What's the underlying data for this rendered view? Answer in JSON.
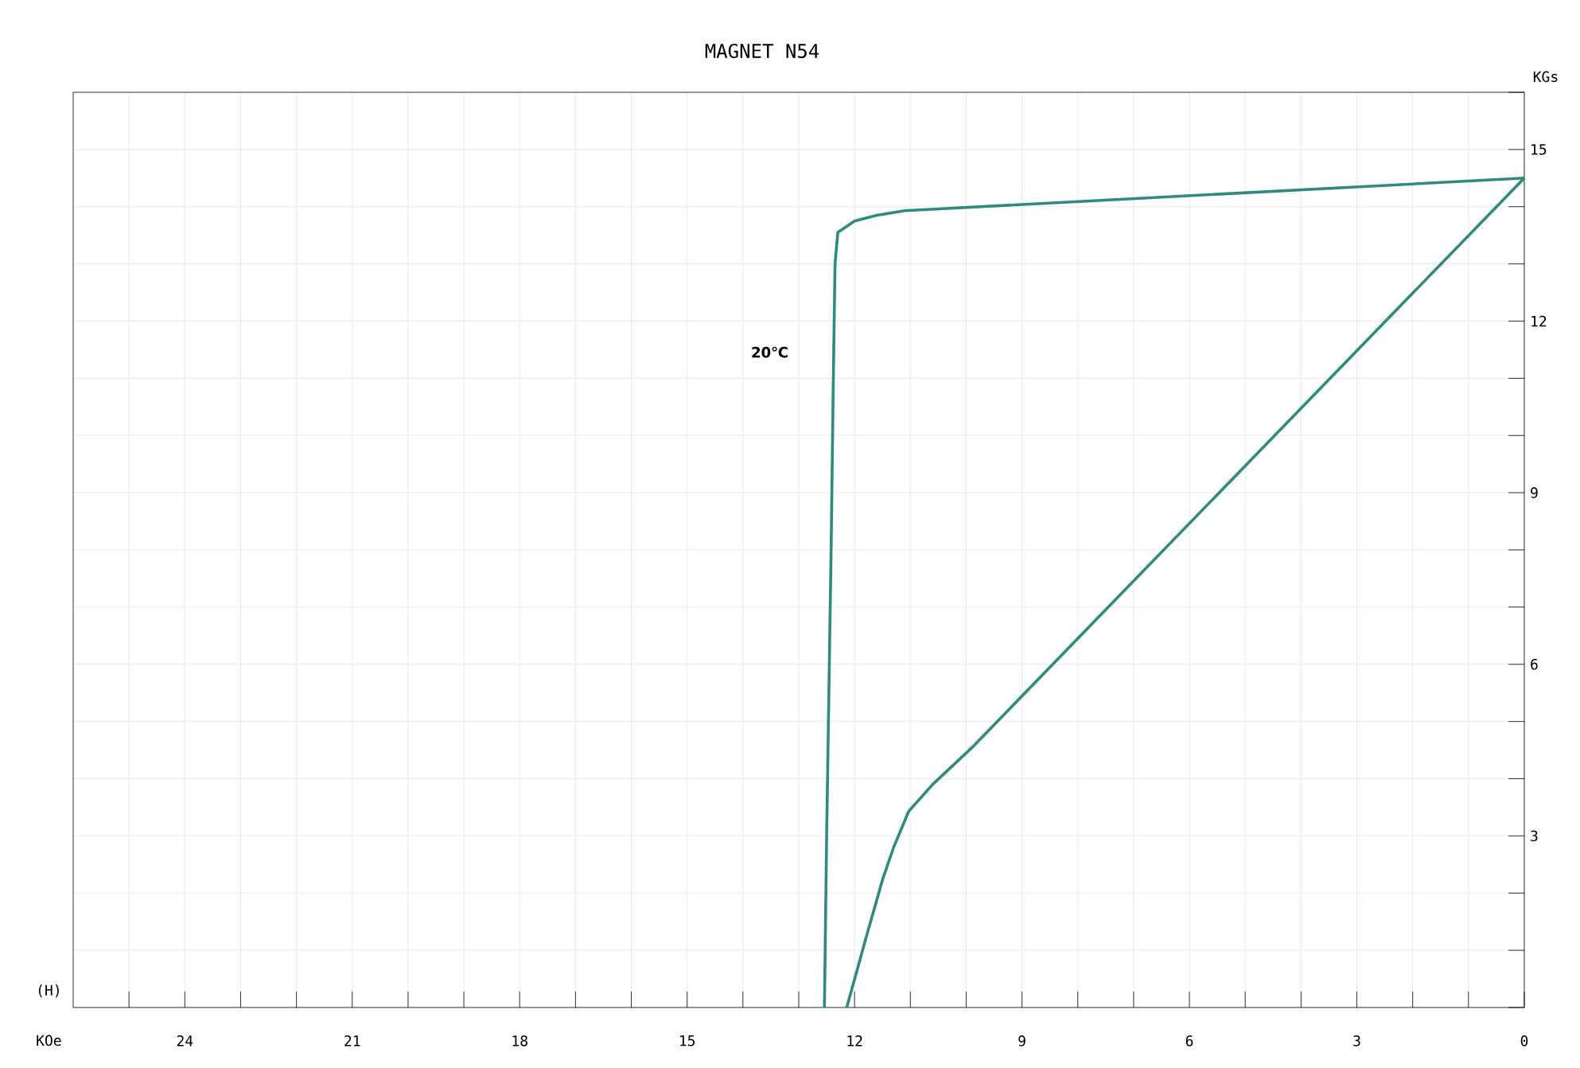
{
  "chart_data": {
    "type": "line",
    "title": "MAGNET N54",
    "xlabel": "KOe",
    "ylabel": "KGs",
    "annotations": [
      "(H)",
      "20℃"
    ],
    "xlim": [
      26,
      0
    ],
    "ylim": [
      0,
      16
    ],
    "xticks": [
      {
        "value": 25,
        "label": null
      },
      24,
      {
        "value": 23,
        "label": null
      },
      {
        "value": 22,
        "label": null
      },
      21,
      {
        "value": 20,
        "label": null
      },
      {
        "value": 19,
        "label": null
      },
      18,
      {
        "value": 17,
        "label": null
      },
      {
        "value": 16,
        "label": null
      },
      15,
      {
        "value": 14,
        "label": null
      },
      {
        "value": 13,
        "label": null
      },
      12,
      {
        "value": 11,
        "label": null
      },
      {
        "value": 10,
        "label": null
      },
      9,
      {
        "value": 8,
        "label": null
      },
      {
        "value": 7,
        "label": null
      },
      6,
      {
        "value": 5,
        "label": null
      },
      {
        "value": 4,
        "label": null
      },
      3,
      {
        "value": 2,
        "label": null
      },
      {
        "value": 1,
        "label": null
      },
      0
    ],
    "yticks": [
      {
        "value": 0,
        "label": null
      },
      {
        "value": 1,
        "label": null
      },
      {
        "value": 2,
        "label": null
      },
      3,
      {
        "value": 4,
        "label": null
      },
      {
        "value": 5,
        "label": null
      },
      6,
      {
        "value": 7,
        "label": null
      },
      {
        "value": 8,
        "label": null
      },
      9,
      {
        "value": 10,
        "label": null
      },
      {
        "value": 11,
        "label": null
      },
      12,
      {
        "value": 13,
        "label": null
      },
      {
        "value": 14,
        "label": null
      },
      15,
      {
        "value": 16,
        "label": null
      }
    ],
    "grid": true,
    "line_style": "solid",
    "series": [
      {
        "color": "#2e8b7e",
        "x": [
          0,
          11.1,
          11.6,
          12.0,
          12.3,
          12.35,
          12.38,
          12.42,
          12.5,
          12.54
        ],
        "values": [
          14.5,
          13.93,
          13.85,
          13.75,
          13.55,
          13.0,
          11,
          8,
          3,
          0
        ]
      },
      {
        "color": "#2e8b7e",
        "x": [
          0,
          9.9,
          10.6,
          11.03,
          11.3,
          11.5,
          11.8,
          12.14
        ],
        "values": [
          14.5,
          4.54,
          3.9,
          3.43,
          2.8,
          2.23,
          1.2,
          0
        ]
      }
    ]
  }
}
